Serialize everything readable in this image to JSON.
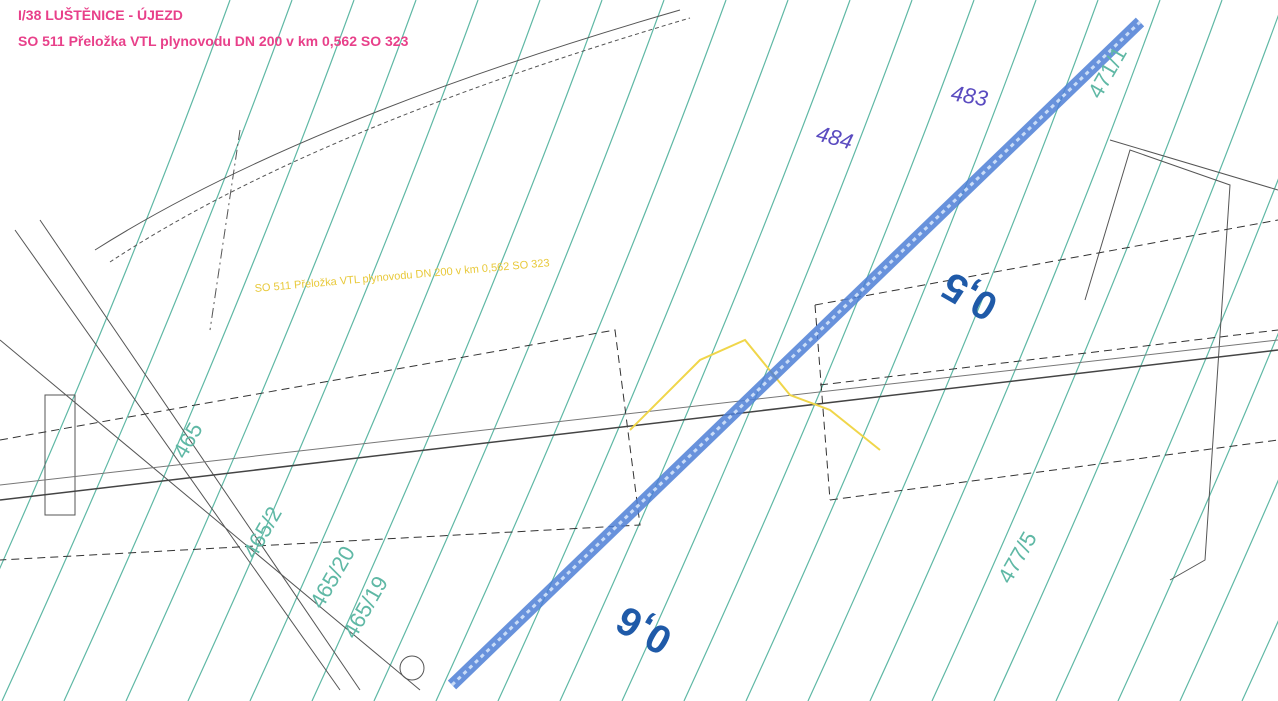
{
  "header": {
    "title": "I/38 LUŠTĚNICE - ÚJEZD",
    "subtitle": "SO 511 Přeložka VTL plynovodu DN 200 v km 0,562 SO 323"
  },
  "handwritten": [
    "484",
    "483"
  ],
  "chainage": [
    "0,5",
    "0,6"
  ],
  "parcels": [
    "477/5",
    "465/19",
    "465/20",
    "465/2",
    "471/1",
    "465"
  ],
  "annotation": "SO 511 Přeložka VTL plynovodu DN 200 v km 0,562 SO 323"
}
